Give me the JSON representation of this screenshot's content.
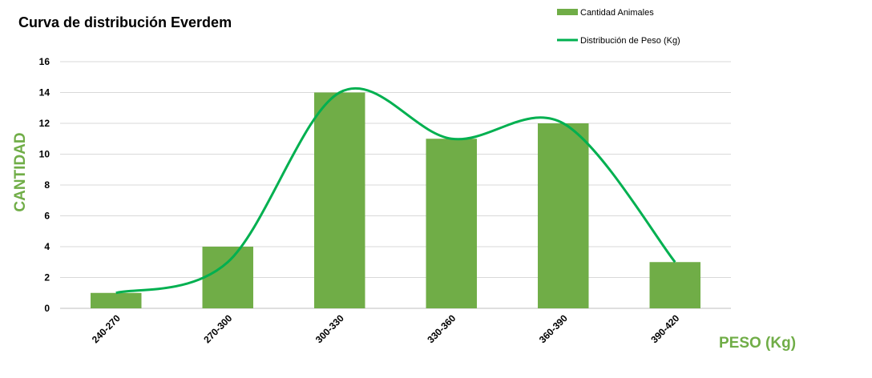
{
  "chart_data": {
    "type": "bar",
    "title": "Curva de distribución Everdem",
    "xlabel": "PESO (Kg)",
    "ylabel": "CANTIDAD",
    "categories": [
      "240-270",
      "270-300",
      "300-330",
      "330-360",
      "360-390",
      "390-420"
    ],
    "series": [
      {
        "name": "Cantidad Animales",
        "type": "bar",
        "values": [
          1,
          4,
          14,
          11,
          12,
          3
        ]
      },
      {
        "name": "Distribución de Peso (Kg)",
        "type": "line",
        "smooth": true,
        "values": [
          1,
          3,
          14,
          11,
          12,
          3
        ]
      }
    ],
    "ylim": [
      0,
      16
    ],
    "yticks": [
      0,
      2,
      4,
      6,
      8,
      10,
      12,
      14,
      16
    ],
    "grid": true,
    "legend_position": "top-right",
    "colors": {
      "bar": "#70ad47",
      "line": "#00b050",
      "axis_title": "#70ad47",
      "grid": "#d9d9d9"
    }
  }
}
